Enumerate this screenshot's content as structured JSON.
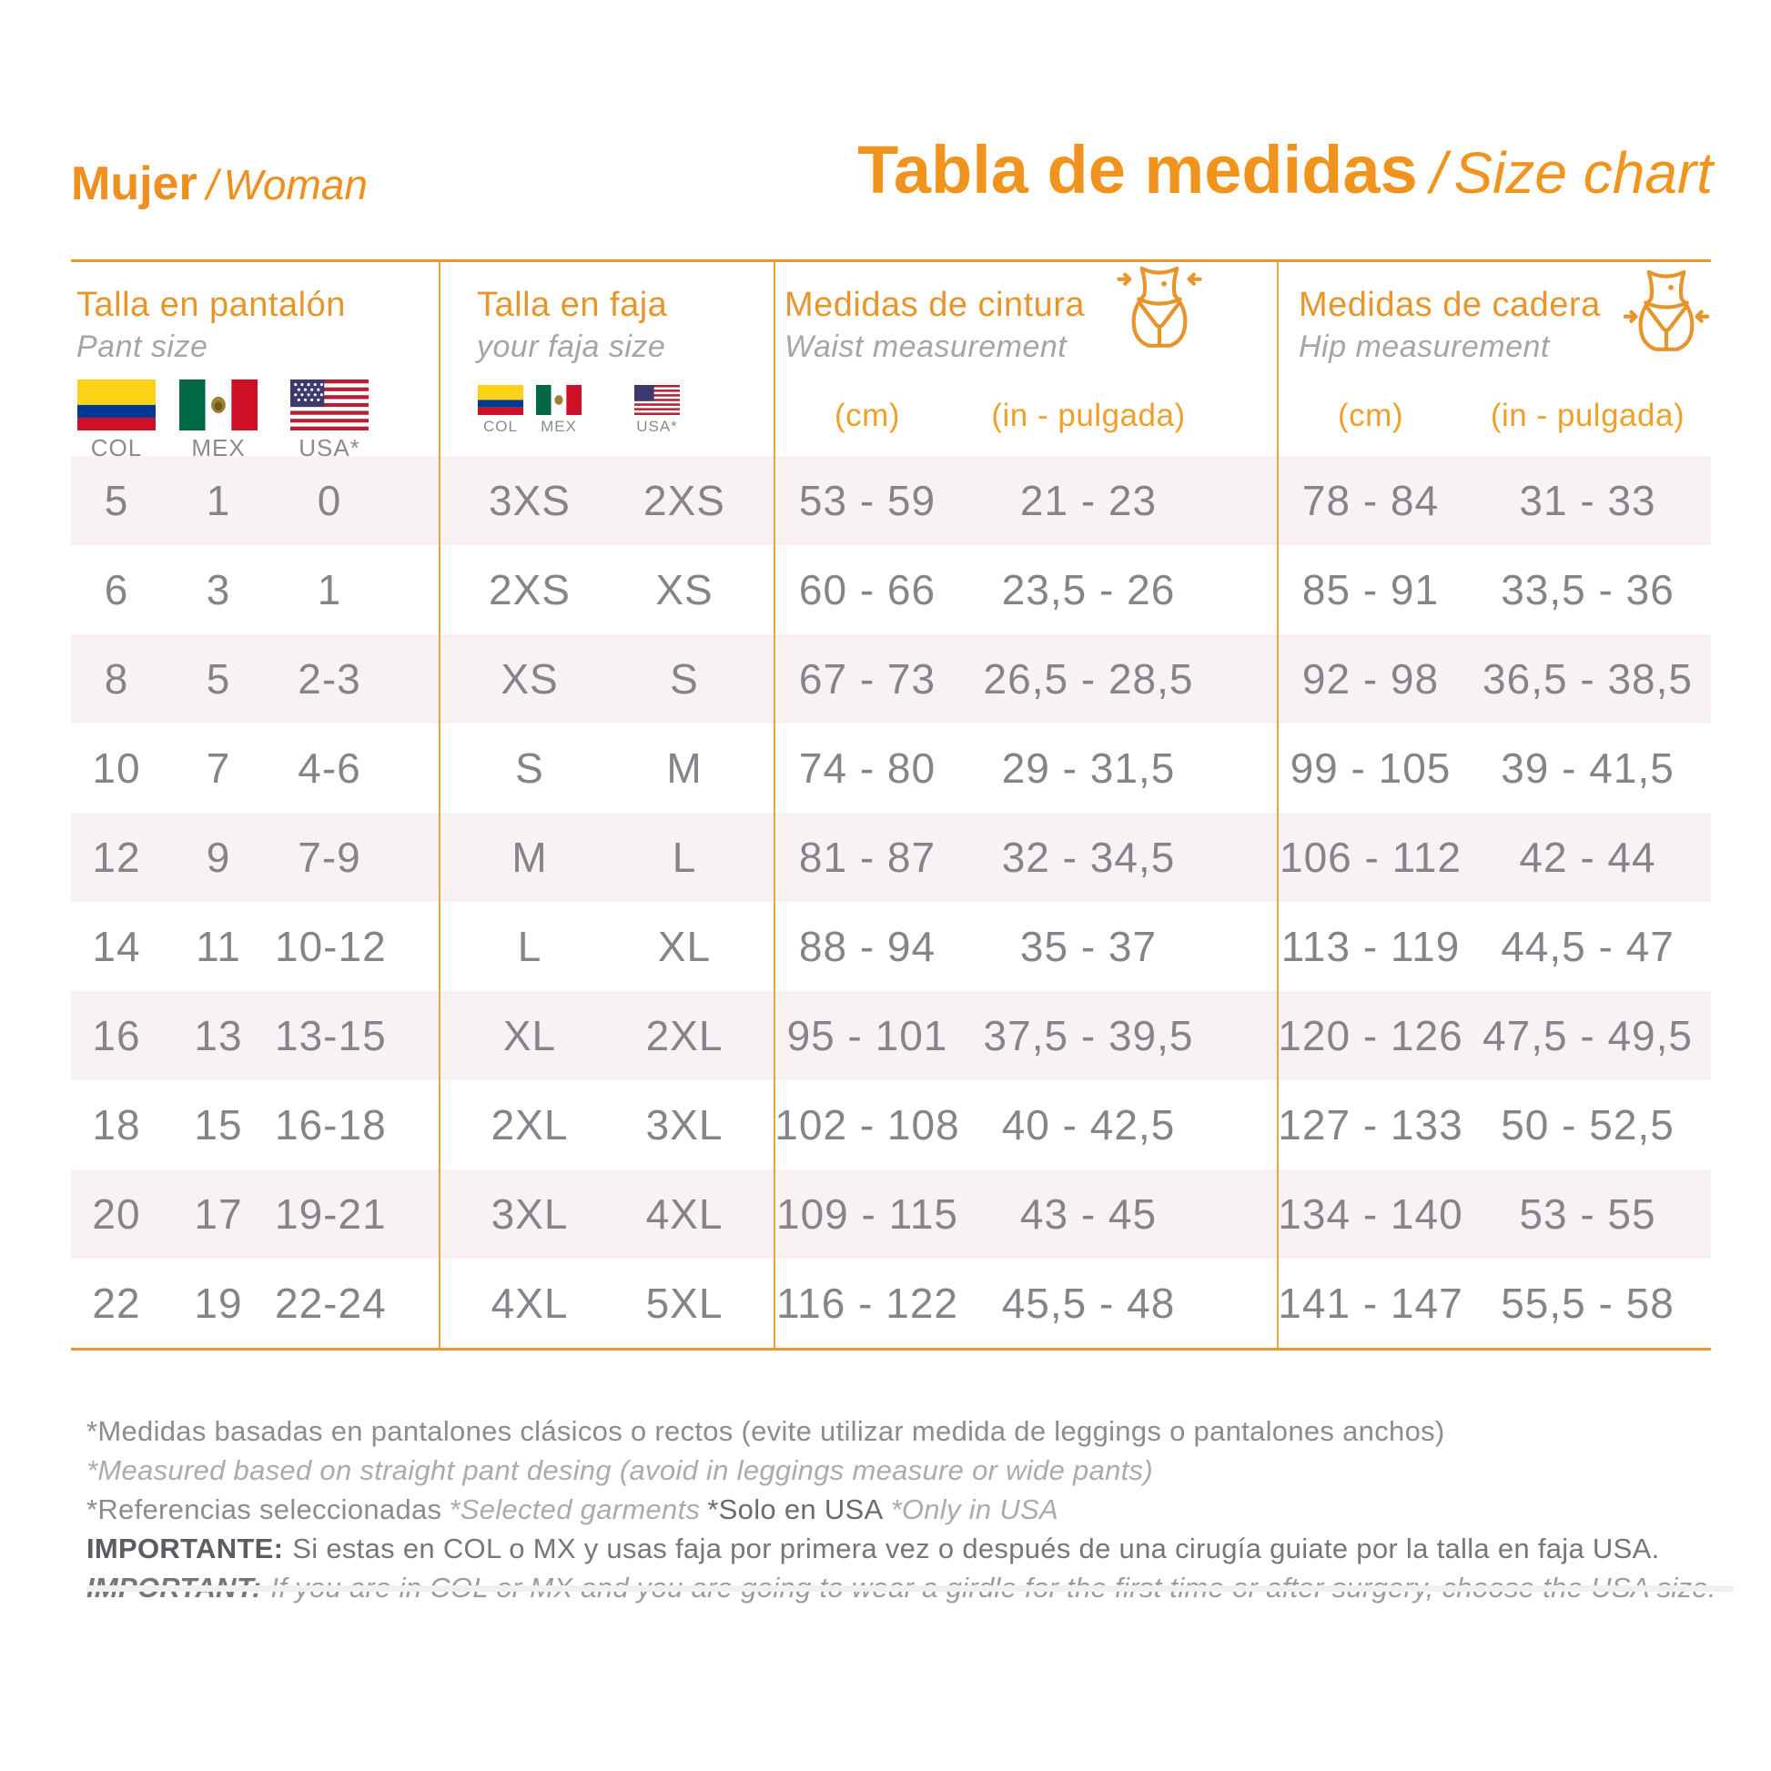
{
  "header": {
    "gender_es": "Mujer",
    "sep": "/",
    "gender_en": "Woman",
    "title_es": "Tabla de medidas",
    "title_en": "Size chart"
  },
  "groups": {
    "pant": {
      "title": "Talla en pantalón",
      "subtitle": "Pant size"
    },
    "faja": {
      "title": "Talla en faja",
      "subtitle": "your faja size"
    },
    "waist": {
      "title": "Medidas de cintura",
      "subtitle": "Waist measurement"
    },
    "hip": {
      "title": "Medidas de cadera",
      "subtitle": "Hip measurement"
    }
  },
  "flag_labels": {
    "col": "COL",
    "mex": "MEX",
    "usa": "USA*"
  },
  "units": {
    "cm": "(cm)",
    "inch": "(in - pulgada)"
  },
  "table": {
    "columns": [
      "COL",
      "MEX",
      "USA*",
      "COL/MEX faja",
      "USA* faja",
      "waist cm",
      "waist in",
      "hip cm",
      "hip in"
    ],
    "rows": [
      [
        "5",
        "1",
        "0",
        "3XS",
        "2XS",
        "53 - 59",
        "21 - 23",
        "78 - 84",
        "31 - 33"
      ],
      [
        "6",
        "3",
        "1",
        "2XS",
        "XS",
        "60 - 66",
        "23,5 - 26",
        "85 - 91",
        "33,5 - 36"
      ],
      [
        "8",
        "5",
        "2-3",
        "XS",
        "S",
        "67 - 73",
        "26,5 - 28,5",
        "92 - 98",
        "36,5 - 38,5"
      ],
      [
        "10",
        "7",
        "4-6",
        "S",
        "M",
        "74 - 80",
        "29 - 31,5",
        "99 - 105",
        "39 - 41,5"
      ],
      [
        "12",
        "9",
        "7-9",
        "M",
        "L",
        "81 - 87",
        "32 - 34,5",
        "106 - 112",
        "42 - 44"
      ],
      [
        "14",
        "11",
        "10-12",
        "L",
        "XL",
        "88 - 94",
        "35 - 37",
        "113 - 119",
        "44,5 - 47"
      ],
      [
        "16",
        "13",
        "13-15",
        "XL",
        "2XL",
        "95 - 101",
        "37,5 - 39,5",
        "120 - 126",
        "47,5 - 49,5"
      ],
      [
        "18",
        "15",
        "16-18",
        "2XL",
        "3XL",
        "102 - 108",
        "40 - 42,5",
        "127 - 133",
        "50 - 52,5"
      ],
      [
        "20",
        "17",
        "19-21",
        "3XL",
        "4XL",
        "109 - 115",
        "43 - 45",
        "134 - 140",
        "53 - 55"
      ],
      [
        "22",
        "19",
        "22-24",
        "4XL",
        "5XL",
        "116 - 122",
        "45,5 - 48",
        "141 - 147",
        "55,5 - 58"
      ]
    ]
  },
  "notes": {
    "line1_es": "*Medidas basadas en pantalones clásicos o rectos (evite utilizar medida de leggings o pantalones anchos)",
    "line1_en": "*Measured based on straight pant desing (avoid in leggings measure or wide pants)",
    "refs_es": "*Referencias seleccionadas",
    "refs_en": "*Selected garments",
    "usa_es": "*Solo en USA",
    "usa_en": "*Only in USA",
    "important_label_es": "IMPORTANTE:",
    "important_es": "Si estas en COL o MX y usas faja por primera vez o después de una cirugía guiate por la talla en faja USA.",
    "important_label_en": "IMPORTANT:",
    "important_en": "If you are in COL or MX and you are going to wear a girdle for the first time or after surgery, choose the USA size."
  },
  "colors": {
    "accent_orange": "#F0941E",
    "line_orange": "#EBA53F",
    "row_pink": "#F8F2F5",
    "text_gray": "#85848A"
  }
}
